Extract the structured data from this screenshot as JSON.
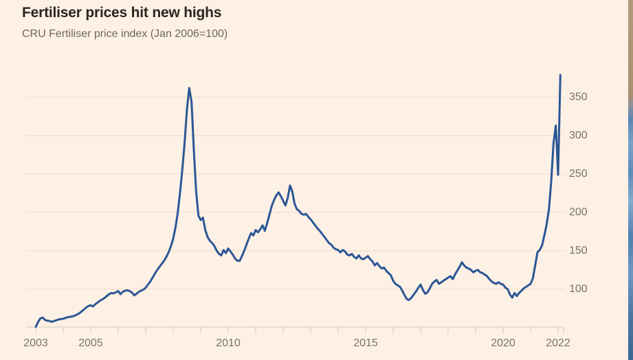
{
  "header": {
    "title": "Fertiliser prices hit new highs",
    "subtitle": "CRU Fertiliser price index (Jan 2006=100)"
  },
  "colors": {
    "background": "#fdf0e5",
    "line": "#2b5694",
    "title_text": "#29251f",
    "subtitle_text": "#6e6660",
    "axis_text": "#7a736c",
    "gridline": "#eeddcc",
    "axis_line": "#d8cabb",
    "edge_artifact_top": "#ac9172",
    "edge_artifact_mid": "#6f9cc6",
    "edge_artifact_bottom": "#3a6896"
  },
  "chart_data": {
    "type": "line",
    "title": "Fertiliser prices hit new highs",
    "subtitle": "CRU Fertiliser price index (Jan 2006=100)",
    "series_name": "CRU Fertiliser price index",
    "grid": "horizontal",
    "y_axis_side": "right",
    "legend": "none",
    "x_start_year": 2003,
    "points_per_year": 12,
    "xlim": [
      2003,
      2022.3
    ],
    "ylim": [
      48,
      390
    ],
    "y_ticks": [
      100,
      150,
      200,
      250,
      300,
      350
    ],
    "x_tick_years": [
      2003,
      2004,
      2005,
      2006,
      2007,
      2008,
      2009,
      2010,
      2011,
      2012,
      2013,
      2014,
      2015,
      2016,
      2017,
      2018,
      2019,
      2020,
      2021,
      2022
    ],
    "x_labeled_ticks": [
      2003,
      2005,
      2010,
      2015,
      2020,
      2022
    ],
    "values": [
      51,
      57,
      62,
      63,
      60,
      59,
      58.5,
      57.5,
      58.5,
      59.5,
      60.5,
      61,
      61.5,
      62.5,
      63.5,
      64,
      64.5,
      65.5,
      67,
      68.5,
      71,
      73.5,
      76,
      78,
      79,
      77.5,
      80.5,
      82.5,
      85,
      86.5,
      88.5,
      91,
      93.5,
      95,
      94.5,
      96,
      97.5,
      93.5,
      96.5,
      98,
      98.5,
      97.5,
      95.5,
      92,
      94,
      96.5,
      98,
      99.5,
      102,
      106,
      110,
      115,
      120,
      125,
      129,
      133,
      137,
      142,
      148,
      156,
      166,
      180,
      200,
      226,
      256,
      292,
      334,
      362,
      344,
      282,
      228,
      196,
      190,
      193,
      177,
      168,
      163,
      160,
      156,
      150,
      146,
      144,
      151,
      147,
      153,
      149,
      145,
      140,
      137,
      137,
      143,
      150,
      158,
      166,
      173,
      170,
      177,
      174,
      178,
      183,
      176,
      186,
      197,
      208,
      216,
      222,
      226,
      221,
      215,
      209,
      219,
      235,
      227,
      211,
      204,
      202,
      198,
      197,
      198,
      194,
      191,
      187,
      183,
      179,
      176,
      172,
      168,
      164,
      160,
      158,
      154,
      152,
      151,
      148,
      151,
      149,
      145,
      144,
      146,
      142,
      140,
      144,
      140,
      139,
      141,
      143,
      139,
      136,
      131,
      134,
      130,
      127,
      128,
      124,
      121,
      118,
      111,
      107,
      105,
      103,
      98,
      92,
      87,
      86,
      89,
      93,
      97,
      102,
      106,
      99,
      94,
      96,
      101,
      107,
      110,
      112,
      107,
      109,
      111,
      113,
      115,
      117,
      113,
      119,
      124,
      129,
      135,
      131,
      128,
      127,
      125,
      122,
      124,
      125,
      122,
      121,
      119,
      117,
      113,
      110,
      108,
      107,
      109,
      107,
      106,
      102,
      100,
      93,
      89,
      95,
      91,
      95,
      98,
      101,
      103,
      105,
      107,
      114,
      131,
      148,
      151,
      157,
      170,
      184,
      204,
      240,
      290,
      313,
      249,
      379
    ]
  }
}
